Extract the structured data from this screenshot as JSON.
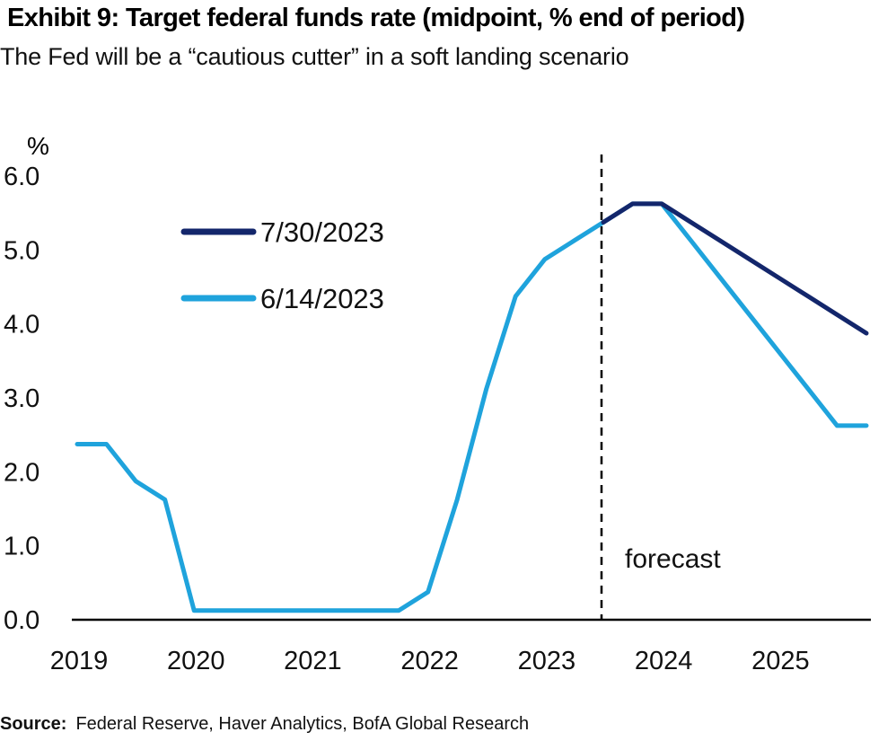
{
  "title": "Exhibit 9: Target federal funds rate (midpoint, % end of period)",
  "subtitle": "The Fed will be a “cautious cutter” in a soft landing scenario",
  "source": {
    "label": "Source:",
    "text": "Federal Reserve, Haver Analytics, BofA Global Research"
  },
  "colors": {
    "series_july": "#13266b",
    "series_june": "#1fa3dc",
    "axis": "#000000",
    "divider": "#000000"
  },
  "chart_data": {
    "type": "line",
    "title": "Exhibit 9: Target federal funds rate (midpoint, % end of period)",
    "ylabel": "%",
    "ylim": [
      0,
      6
    ],
    "yticks": [
      0,
      1,
      2,
      3,
      4,
      5,
      6
    ],
    "ytick_labels": [
      "0.0",
      "1.0",
      "2.0",
      "3.0",
      "4.0",
      "5.0",
      "6.0"
    ],
    "xticks": [
      2019,
      2020,
      2021,
      2022,
      2023,
      2024,
      2025
    ],
    "xtick_labels": [
      "2019",
      "2020",
      "2021",
      "2022",
      "2023",
      "2024",
      "2025"
    ],
    "xlim": [
      2019,
      2025.75
    ],
    "grid": false,
    "legend": "upper-left",
    "forecast_line_x": 2023.5,
    "annotation": "forecast",
    "series": [
      {
        "name": "7/30/2023",
        "x": [
          2023.5,
          2023.75,
          2024.0,
          2024.25,
          2024.5,
          2024.75,
          2025.0,
          2025.25,
          2025.5,
          2025.75
        ],
        "values": [
          5.375,
          5.625,
          5.625,
          5.375,
          5.125,
          4.875,
          4.625,
          4.375,
          4.125,
          3.875
        ]
      },
      {
        "name": "6/14/2023",
        "x": [
          2019.0,
          2019.25,
          2019.5,
          2019.75,
          2020.0,
          2020.25,
          2020.5,
          2020.75,
          2021.0,
          2021.25,
          2021.5,
          2021.75,
          2022.0,
          2022.25,
          2022.5,
          2022.75,
          2023.0,
          2023.25,
          2023.5,
          2023.75,
          2024.0,
          2024.25,
          2024.5,
          2024.75,
          2025.0,
          2025.25,
          2025.5,
          2025.75
        ],
        "values": [
          2.375,
          2.375,
          1.875,
          1.625,
          0.125,
          0.125,
          0.125,
          0.125,
          0.125,
          0.125,
          0.125,
          0.125,
          0.375,
          1.625,
          3.125,
          4.375,
          4.875,
          5.125,
          5.375,
          5.625,
          5.625,
          5.125,
          4.625,
          4.125,
          3.625,
          3.125,
          2.625,
          2.625
        ]
      }
    ]
  }
}
